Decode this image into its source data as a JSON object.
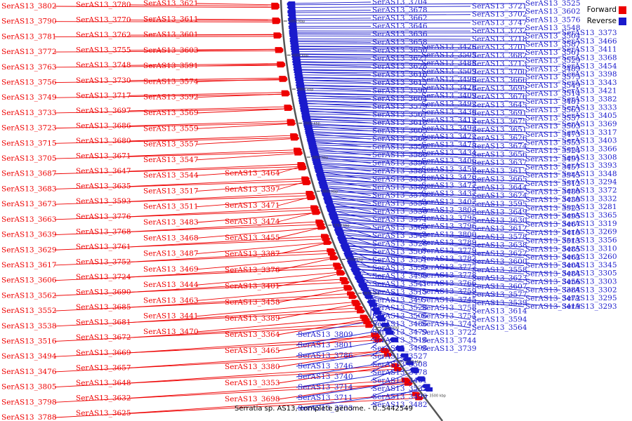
{
  "legend": {
    "forward_label": "Forward",
    "reverse_label": "Reverse",
    "forward_color": "#ee0000",
    "reverse_color": "#1a1acc"
  },
  "caption": "Serratia sp. AS13, complete genome. - 0..5442549",
  "scale_ticks": [
    "4050 kbp",
    "4000 kbp",
    "3950 kbp",
    "3900 kbp",
    "3850 kbp",
    "3800 kbp",
    "3750 kbp",
    "3700 kbp",
    "3650 kbp",
    "3600 kbp",
    "3550 kbp",
    "3500 kbp"
  ],
  "forward_genes": [
    "SerAS13_3802",
    "SerAS13_3790",
    "SerAS13_3781",
    "SerAS13_3772",
    "SerAS13_3763",
    "SerAS13_3756",
    "SerAS13_3749",
    "SerAS13_3733",
    "SerAS13_3723",
    "SerAS13_3715",
    "SerAS13_3705",
    "SerAS13_3687",
    "SerAS13_3683",
    "SerAS13_3673",
    "SerAS13_3663",
    "SerAS13_3639",
    "SerAS13_3629",
    "SerAS13_3617",
    "SerAS13_3606",
    "SerAS13_3562",
    "SerAS13_3552",
    "SerAS13_3538",
    "SerAS13_3516",
    "SerAS13_3494",
    "SerAS13_3476",
    "SerAS13_3805",
    "SerAS13_3798",
    "SerAS13_3788",
    "SerAS13_3780",
    "SerAS13_3770",
    "SerAS13_3762",
    "SerAS13_3755",
    "SerAS13_3748",
    "SerAS13_3730",
    "SerAS13_3717",
    "SerAS13_3697",
    "SerAS13_3686",
    "SerAS13_3680",
    "SerAS13_3671",
    "SerAS13_3647",
    "SerAS13_3635",
    "SerAS13_3593",
    "SerAS13_3776",
    "SerAS13_3768",
    "SerAS13_3761",
    "SerAS13_3752",
    "SerAS13_3724",
    "SerAS13_3690",
    "SerAS13_3685",
    "SerAS13_3681",
    "SerAS13_3672",
    "SerAS13_3669",
    "SerAS13_3657",
    "SerAS13_3648",
    "SerAS13_3632",
    "SerAS13_3625",
    "SerAS13_3621",
    "SerAS13_3611",
    "SerAS13_3601",
    "SerAS13_3603",
    "SerAS13_3591",
    "SerAS13_3574",
    "SerAS13_3592",
    "SerAS13_3569",
    "SerAS13_3559",
    "SerAS13_3557",
    "SerAS13_3547",
    "SerAS13_3544",
    "SerAS13_3517",
    "SerAS13_3511",
    "SerAS13_3483",
    "SerAS13_3468",
    "SerAS13_3487",
    "SerAS13_3469",
    "SerAS13_3444",
    "SerAS13_3463",
    "SerAS13_3441",
    "SerAS13_3470",
    "SerAS13_3464",
    "SerAS13_3397",
    "SerAS13_3471",
    "SerAS13_3474",
    "SerAS13_3455",
    "SerAS13_3387",
    "SerAS13_3376",
    "SerAS13_3401",
    "SerAS13_3458",
    "SerAS13_3389",
    "SerAS13_3364",
    "SerAS13_3465",
    "SerAS13_3380",
    "SerAS13_3353",
    "SerAS13_3698"
  ],
  "reverse_genes": [
    "SerAS13_3809",
    "SerAS13_3801",
    "SerAS13_3786",
    "SerAS13_3746",
    "SerAS13_3740",
    "SerAS13_3714",
    "SerAS13_3711",
    "SerAS13_3703",
    "SerAS13_3704",
    "SerAS13_3678",
    "SerAS13_3662",
    "SerAS13_3646",
    "SerAS13_3636",
    "SerAS13_3658",
    "SerAS13_3650",
    "SerAS13_3627",
    "SerAS13_3628",
    "SerAS13_3616",
    "SerAS13_3615",
    "SerAS13_3590",
    "SerAS13_3604",
    "SerAS13_3579",
    "SerAS13_3567",
    "SerAS13_3618",
    "SerAS13_3605",
    "SerAS13_3568",
    "SerAS13_3556",
    "SerAS13_3580",
    "SerAS13_3596",
    "SerAS13_3581",
    "SerAS13_3531",
    "SerAS13_3582",
    "SerAS13_3570",
    "SerAS13_3550",
    "SerAS13_3536",
    "SerAS13_3571",
    "SerAS13_3560",
    "SerAS13_3540",
    "SerAS13_3526",
    "SerAS13_3507",
    "SerAS13_3551",
    "SerAS13_3530",
    "SerAS13_3496",
    "SerAS13_3541",
    "SerAS13_3515",
    "SerAS13_3497",
    "SerAS13_3528",
    "SerAS13_3506",
    "SerAS13_3486",
    "SerAS13_3479",
    "SerAS13_3518",
    "SerAS13_3498",
    "SerAS13_3527",
    "SerAS13_3508",
    "SerAS13_3478",
    "SerAS13_3461",
    "SerAS13_3532",
    "SerAS13_3499",
    "SerAS13_3482",
    "SerAS13_3426",
    "SerAS13_3505",
    "SerAS13_3488",
    "SerAS13_3509",
    "SerAS13_3490",
    "SerAS13_3428",
    "SerAS13_3409",
    "SerAS13_3492",
    "SerAS13_3436",
    "SerAS13_3412",
    "SerAS13_3493",
    "SerAS13_3422",
    "SerAS13_3475",
    "SerAS13_3434",
    "SerAS13_3406",
    "SerAS13_3459",
    "SerAS13_3420",
    "SerAS13_3477",
    "SerAS13_3437",
    "SerAS13_3407",
    "SerAS13_3803",
    "SerAS13_3795",
    "SerAS13_3796",
    "SerAS13_3800",
    "SerAS13_3789",
    "SerAS13_3779",
    "SerAS13_3782",
    "SerAS13_3777",
    "SerAS13_3778",
    "SerAS13_3766",
    "SerAS13_3759",
    "SerAS13_3745",
    "SerAS13_3758",
    "SerAS13_3754",
    "SerAS13_3743",
    "SerAS13_3722",
    "SerAS13_3744",
    "SerAS13_3739",
    "SerAS13_3721",
    "SerAS13_3702",
    "SerAS13_3747",
    "SerAS13_3732",
    "SerAS13_3718",
    "SerAS13_3701",
    "SerAS13_3682",
    "SerAS13_3713",
    "SerAS13_3700",
    "SerAS13_3666",
    "SerAS13_3699",
    "SerAS13_3676",
    "SerAS13_3645",
    "SerAS13_3691",
    "SerAS13_3675",
    "SerAS13_3651",
    "SerAS13_3626",
    "SerAS13_3674",
    "SerAS13_3656",
    "SerAS13_3637",
    "SerAS13_3613",
    "SerAS13_3665",
    "SerAS13_3644",
    "SerAS13_3624",
    "SerAS13_3595",
    "SerAS13_3649",
    "SerAS13_3630",
    "SerAS13_3612",
    "SerAS13_3578",
    "SerAS13_3638",
    "SerAS13_3622",
    "SerAS13_3600",
    "SerAS13_3558",
    "SerAS13_3623",
    "SerAS13_3607",
    "SerAS13_3577",
    "SerAS13_3539",
    "SerAS13_3614",
    "SerAS13_3594",
    "SerAS13_3564",
    "SerAS13_3525",
    "SerAS13_3602",
    "SerAS13_3576",
    "SerAS13_3548",
    "SerAS13_3504",
    "SerAS13_3587",
    "SerAS13_3561",
    "SerAS13_3529",
    "SerAS13_3489",
    "SerAS13_3575",
    "SerAS13_3549",
    "SerAS13_3514",
    "SerAS13_3481",
    "SerAS13_3563",
    "SerAS13_3537",
    "SerAS13_3503",
    "SerAS13_3473",
    "SerAS13_3553",
    "SerAS13_3524",
    "SerAS13_3491",
    "SerAS13_3457",
    "SerAS13_3545",
    "SerAS13_3512",
    "SerAS13_3480",
    "SerAS13_3430",
    "SerAS13_3523",
    "SerAS13_3495",
    "SerAS13_3467",
    "SerAS13_3410",
    "SerAS13_3513",
    "SerAS13_3485",
    "SerAS13_3462",
    "SerAS13_3404",
    "SerAS13_3484",
    "SerAS13_3456",
    "SerAS13_3384",
    "SerAS13_3472",
    "SerAS13_3419",
    "SerAS13_3373",
    "SerAS13_3466",
    "SerAS13_3411",
    "SerAS13_3368",
    "SerAS13_3454",
    "SerAS13_3398",
    "SerAS13_3343",
    "SerAS13_3421",
    "SerAS13_3382",
    "SerAS13_3333",
    "SerAS13_3405",
    "SerAS13_3369",
    "SerAS13_3317",
    "SerAS13_3403",
    "SerAS13_3366",
    "SerAS13_3308",
    "SerAS13_3393",
    "SerAS13_3348",
    "SerAS13_3294",
    "SerAS13_3372",
    "SerAS13_3332",
    "SerAS13_3281",
    "SerAS13_3365",
    "SerAS13_3319",
    "SerAS13_3269",
    "SerAS13_3356",
    "SerAS13_3310",
    "SerAS13_3260",
    "SerAS13_3345",
    "SerAS13_3305",
    "SerAS13_3303",
    "SerAS13_3302",
    "SerAS13_3295",
    "SerAS13_3293"
  ]
}
